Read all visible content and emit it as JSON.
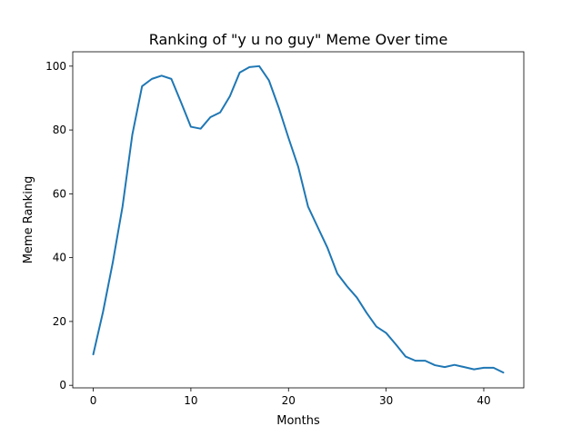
{
  "chart_data": {
    "type": "line",
    "title": "Ranking of \"y u no guy\" Meme Over time",
    "xlabel": "Months",
    "ylabel": "Meme Ranking",
    "xlim": [
      -2.1,
      44.1
    ],
    "ylim": [
      -0.8,
      104.5
    ],
    "xticks": [
      0,
      10,
      20,
      30,
      40
    ],
    "yticks": [
      0,
      20,
      40,
      60,
      80,
      100
    ],
    "grid": false,
    "legend": "none",
    "series_color": "#1f77b4",
    "series": [
      {
        "x": [
          0,
          1,
          2,
          3,
          4,
          5,
          6,
          7,
          8,
          9,
          10,
          11,
          12,
          13,
          14,
          15,
          16,
          17,
          18,
          19,
          20,
          21,
          22,
          23,
          24,
          25,
          26,
          27,
          28,
          29,
          30,
          31,
          32,
          33,
          34,
          35,
          36,
          37,
          38,
          39,
          40,
          41,
          42
        ],
        "values": [
          9.7,
          23,
          38.5,
          56,
          78.5,
          93.7,
          96,
          97,
          96,
          88.6,
          81,
          80.4,
          84,
          85.5,
          90.6,
          98,
          99.7,
          100,
          95.5,
          87,
          77.5,
          68.4,
          56,
          49.5,
          43,
          35,
          31,
          27.5,
          22.7,
          18.4,
          16.4,
          12.8,
          9,
          7.7,
          7.7,
          6.3,
          5.7,
          6.4,
          5.7,
          5,
          5.5,
          5.5,
          4
        ]
      }
    ]
  }
}
